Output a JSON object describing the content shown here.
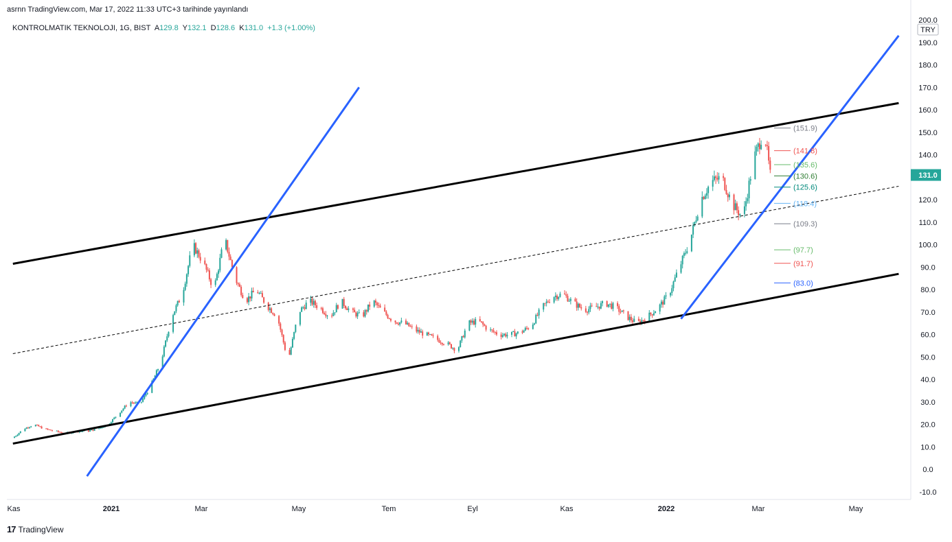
{
  "header": {
    "published_text": "asrnn TradingView.com, Mar 17, 2022 11:33 UTC+3 tarihinde yayınlandı",
    "symbol_line": "KONTROLMATIK TEKNOLOJI, 1G, BIST",
    "o_label": "A",
    "o_value": "129.8",
    "h_label": "Y",
    "h_value": "132.1",
    "l_label": "D",
    "l_value": "128.6",
    "c_label": "K",
    "c_value": "131.0",
    "change": "+1.3 (+1.00%)"
  },
  "footer": {
    "brand": "TradingView",
    "logo": "17"
  },
  "colors": {
    "up": "#26a69a",
    "down": "#ef5350",
    "trend_blue": "#2962ff",
    "channel": "#000000",
    "price_tag": "#26a69a"
  },
  "chart_data": {
    "type": "candlestick",
    "currency": "TRY",
    "last_price": "131.0",
    "y_ticks": [
      "200.0",
      "190.0",
      "180.0",
      "170.0",
      "160.0",
      "150.0",
      "140.0",
      "130.0",
      "120.0",
      "110.0",
      "100.0",
      "90.0",
      "80.0",
      "70.0",
      "60.0",
      "50.0",
      "40.0",
      "30.0",
      "20.0",
      "10.0",
      "0.0",
      "-10.0"
    ],
    "ylim": [
      -10,
      200
    ],
    "x_ticks": [
      {
        "label": "Kas",
        "bold": false
      },
      {
        "label": "2021",
        "bold": true
      },
      {
        "label": "Mar",
        "bold": false
      },
      {
        "label": "May",
        "bold": false
      },
      {
        "label": "Tem",
        "bold": false
      },
      {
        "label": "Eyl",
        "bold": false
      },
      {
        "label": "Kas",
        "bold": false
      },
      {
        "label": "2022",
        "bold": true
      },
      {
        "label": "Mar",
        "bold": false
      },
      {
        "label": "May",
        "bold": false
      }
    ],
    "price_path": [
      [
        "2020-11-01",
        14
      ],
      [
        "2020-11-08",
        18
      ],
      [
        "2020-11-15",
        20
      ],
      [
        "2020-11-22",
        18
      ],
      [
        "2020-11-29",
        17
      ],
      [
        "2020-12-06",
        16
      ],
      [
        "2020-12-13",
        17
      ],
      [
        "2020-12-20",
        17
      ],
      [
        "2020-12-27",
        18
      ],
      [
        "2021-01-03",
        20
      ],
      [
        "2021-01-10",
        25
      ],
      [
        "2021-01-17",
        30
      ],
      [
        "2021-01-24",
        29
      ],
      [
        "2021-01-31",
        37
      ],
      [
        "2021-02-07",
        48
      ],
      [
        "2021-02-14",
        68
      ],
      [
        "2021-02-21",
        78
      ],
      [
        "2021-02-28",
        100
      ],
      [
        "2021-03-07",
        92
      ],
      [
        "2021-03-14",
        80
      ],
      [
        "2021-03-21",
        103
      ],
      [
        "2021-03-28",
        85
      ],
      [
        "2021-04-04",
        75
      ],
      [
        "2021-04-11",
        80
      ],
      [
        "2021-04-18",
        73
      ],
      [
        "2021-04-25",
        68
      ],
      [
        "2021-05-02",
        48
      ],
      [
        "2021-05-09",
        70
      ],
      [
        "2021-05-16",
        75
      ],
      [
        "2021-05-23",
        72
      ],
      [
        "2021-05-30",
        68
      ],
      [
        "2021-06-06",
        75
      ],
      [
        "2021-06-13",
        70
      ],
      [
        "2021-06-20",
        68
      ],
      [
        "2021-06-27",
        75
      ],
      [
        "2021-07-04",
        70
      ],
      [
        "2021-07-11",
        66
      ],
      [
        "2021-07-18",
        65
      ],
      [
        "2021-07-25",
        62
      ],
      [
        "2021-08-01",
        60
      ],
      [
        "2021-08-08",
        58
      ],
      [
        "2021-08-15",
        56
      ],
      [
        "2021-08-22",
        53
      ],
      [
        "2021-08-29",
        65
      ],
      [
        "2021-09-05",
        66
      ],
      [
        "2021-09-12",
        62
      ],
      [
        "2021-09-19",
        60
      ],
      [
        "2021-09-26",
        60
      ],
      [
        "2021-10-03",
        61
      ],
      [
        "2021-10-10",
        64
      ],
      [
        "2021-10-17",
        72
      ],
      [
        "2021-10-24",
        77
      ],
      [
        "2021-10-31",
        78
      ],
      [
        "2021-11-07",
        74
      ],
      [
        "2021-11-14",
        71
      ],
      [
        "2021-11-21",
        72
      ],
      [
        "2021-11-28",
        74
      ],
      [
        "2021-12-05",
        72
      ],
      [
        "2021-12-12",
        68
      ],
      [
        "2021-12-19",
        65
      ],
      [
        "2021-12-26",
        68
      ],
      [
        "2022-01-02",
        72
      ],
      [
        "2022-01-09",
        78
      ],
      [
        "2022-01-16",
        90
      ],
      [
        "2022-01-23",
        102
      ],
      [
        "2022-01-30",
        120
      ],
      [
        "2022-02-06",
        128
      ],
      [
        "2022-02-13",
        130
      ],
      [
        "2022-02-20",
        118
      ],
      [
        "2022-02-27",
        112
      ],
      [
        "2022-03-06",
        138
      ],
      [
        "2022-03-13",
        151
      ],
      [
        "2022-03-17",
        131
      ]
    ],
    "drawings": {
      "channel_upper": [
        [
          "2020-11-01",
          91.5
        ],
        [
          "2022-06-10",
          163
        ]
      ],
      "channel_lower": [
        [
          "2020-11-01",
          11.5
        ],
        [
          "2022-06-10",
          87
        ]
      ],
      "channel_mid": [
        [
          "2020-11-01",
          51.5
        ],
        [
          "2022-06-10",
          126
        ]
      ],
      "trend_2021": [
        [
          "2020-12-20",
          -3
        ],
        [
          "2021-06-18",
          170
        ]
      ],
      "trend_2022": [
        [
          "2022-01-17",
          67
        ],
        [
          "2022-06-10",
          193
        ]
      ]
    },
    "fib_levels": [
      {
        "label": "(151.9)",
        "value": 151.9,
        "color": "#787b86"
      },
      {
        "label": "(141.8)",
        "value": 141.8,
        "color": "#ef5350"
      },
      {
        "label": "(135.6)",
        "value": 135.6,
        "color": "#66bb6a"
      },
      {
        "label": "(130.6)",
        "value": 130.6,
        "color": "#2e7d32"
      },
      {
        "label": "(125.6)",
        "value": 125.6,
        "color": "#00897b"
      },
      {
        "label": "(118.4)",
        "value": 118.4,
        "color": "#64b5f6"
      },
      {
        "label": "(109.3)",
        "value": 109.3,
        "color": "#787b86"
      },
      {
        "label": "(97.7)",
        "value": 97.7,
        "color": "#66bb6a"
      },
      {
        "label": "(91.7)",
        "value": 91.7,
        "color": "#ef5350"
      },
      {
        "label": "(83.0)",
        "value": 83.0,
        "color": "#2962ff"
      }
    ]
  }
}
